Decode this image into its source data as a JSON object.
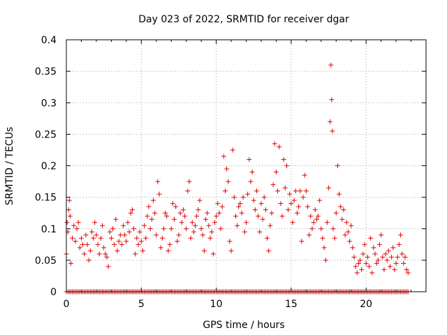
{
  "chart_data": {
    "type": "scatter",
    "title": "Day 023 of 2022, SRMTID for receiver dgar",
    "xlabel": "GPS time / hours",
    "ylabel": "SRMTID / TECUs",
    "xlim": [
      0,
      24
    ],
    "ylim": [
      0,
      0.4
    ],
    "xticks": [
      0,
      5,
      10,
      15,
      20
    ],
    "yticks": [
      0,
      0.05,
      0.1,
      0.15,
      0.2,
      0.25,
      0.3,
      0.35,
      0.4
    ],
    "xtick_labels": [
      "0",
      "5",
      "10",
      "15",
      "20"
    ],
    "ytick_labels": [
      "0",
      "0.05",
      "0.1",
      "0.15",
      "0.2",
      "0.25",
      "0.3",
      "0.35",
      "0.4"
    ],
    "grid": true,
    "marker": "+",
    "color": "#e00000",
    "series": [
      {
        "name": "SRMTID",
        "zero_band": {
          "x_from": 0.0,
          "x_to": 22.8,
          "step": 0.1,
          "y": 0
        },
        "points": [
          [
            0.0,
            0.06
          ],
          [
            0.05,
            0.11
          ],
          [
            0.1,
            0.095
          ],
          [
            0.15,
            0.13
          ],
          [
            0.2,
            0.145
          ],
          [
            0.25,
            0.12
          ],
          [
            0.3,
            0.045
          ],
          [
            0.4,
            0.085
          ],
          [
            0.5,
            0.105
          ],
          [
            0.6,
            0.08
          ],
          [
            0.7,
            0.1
          ],
          [
            0.8,
            0.11
          ],
          [
            0.9,
            0.07
          ],
          [
            1.0,
            0.085
          ],
          [
            1.1,
            0.075
          ],
          [
            1.2,
            0.06
          ],
          [
            1.3,
            0.09
          ],
          [
            1.4,
            0.075
          ],
          [
            1.5,
            0.05
          ],
          [
            1.6,
            0.065
          ],
          [
            1.7,
            0.095
          ],
          [
            1.8,
            0.085
          ],
          [
            1.9,
            0.11
          ],
          [
            2.0,
            0.09
          ],
          [
            2.1,
            0.075
          ],
          [
            2.2,
            0.06
          ],
          [
            2.3,
            0.085
          ],
          [
            2.4,
            0.105
          ],
          [
            2.5,
            0.07
          ],
          [
            2.6,
            0.06
          ],
          [
            2.7,
            0.055
          ],
          [
            2.8,
            0.04
          ],
          [
            2.9,
            0.095
          ],
          [
            3.0,
            0.085
          ],
          [
            3.1,
            0.1
          ],
          [
            3.2,
            0.075
          ],
          [
            3.3,
            0.115
          ],
          [
            3.4,
            0.065
          ],
          [
            3.5,
            0.08
          ],
          [
            3.6,
            0.09
          ],
          [
            3.7,
            0.075
          ],
          [
            3.8,
            0.105
          ],
          [
            3.9,
            0.09
          ],
          [
            4.0,
            0.08
          ],
          [
            4.1,
            0.11
          ],
          [
            4.2,
            0.095
          ],
          [
            4.3,
            0.125
          ],
          [
            4.4,
            0.13
          ],
          [
            4.5,
            0.1
          ],
          [
            4.6,
            0.06
          ],
          [
            4.7,
            0.085
          ],
          [
            4.8,
            0.075
          ],
          [
            4.9,
            0.095
          ],
          [
            5.0,
            0.08
          ],
          [
            5.1,
            0.065
          ],
          [
            5.2,
            0.105
          ],
          [
            5.3,
            0.085
          ],
          [
            5.4,
            0.12
          ],
          [
            5.5,
            0.135
          ],
          [
            5.6,
            0.1
          ],
          [
            5.7,
            0.115
          ],
          [
            5.8,
            0.145
          ],
          [
            5.9,
            0.125
          ],
          [
            6.0,
            0.09
          ],
          [
            6.1,
            0.175
          ],
          [
            6.2,
            0.155
          ],
          [
            6.3,
            0.07
          ],
          [
            6.4,
            0.085
          ],
          [
            6.5,
            0.1
          ],
          [
            6.6,
            0.125
          ],
          [
            6.7,
            0.12
          ],
          [
            6.8,
            0.065
          ],
          [
            6.9,
            0.075
          ],
          [
            7.0,
            0.1
          ],
          [
            7.1,
            0.14
          ],
          [
            7.2,
            0.115
          ],
          [
            7.3,
            0.135
          ],
          [
            7.4,
            0.08
          ],
          [
            7.5,
            0.09
          ],
          [
            7.6,
            0.125
          ],
          [
            7.7,
            0.11
          ],
          [
            7.8,
            0.13
          ],
          [
            7.9,
            0.12
          ],
          [
            8.0,
            0.1
          ],
          [
            8.1,
            0.16
          ],
          [
            8.2,
            0.175
          ],
          [
            8.3,
            0.085
          ],
          [
            8.4,
            0.11
          ],
          [
            8.5,
            0.095
          ],
          [
            8.6,
            0.105
          ],
          [
            8.7,
            0.12
          ],
          [
            8.8,
            0.13
          ],
          [
            8.9,
            0.145
          ],
          [
            9.0,
            0.1
          ],
          [
            9.1,
            0.09
          ],
          [
            9.2,
            0.065
          ],
          [
            9.3,
            0.115
          ],
          [
            9.4,
            0.125
          ],
          [
            9.5,
            0.105
          ],
          [
            9.6,
            0.085
          ],
          [
            9.7,
            0.095
          ],
          [
            9.8,
            0.06
          ],
          [
            9.9,
            0.11
          ],
          [
            10.0,
            0.12
          ],
          [
            10.1,
            0.14
          ],
          [
            10.2,
            0.125
          ],
          [
            10.3,
            0.1
          ],
          [
            10.4,
            0.135
          ],
          [
            10.5,
            0.215
          ],
          [
            10.6,
            0.16
          ],
          [
            10.7,
            0.195
          ],
          [
            10.8,
            0.175
          ],
          [
            10.9,
            0.08
          ],
          [
            11.0,
            0.065
          ],
          [
            11.1,
            0.225
          ],
          [
            11.2,
            0.15
          ],
          [
            11.3,
            0.12
          ],
          [
            11.4,
            0.105
          ],
          [
            11.5,
            0.135
          ],
          [
            11.6,
            0.14
          ],
          [
            11.7,
            0.125
          ],
          [
            11.8,
            0.15
          ],
          [
            11.9,
            0.095
          ],
          [
            12.0,
            0.11
          ],
          [
            12.1,
            0.155
          ],
          [
            12.2,
            0.21
          ],
          [
            12.3,
            0.175
          ],
          [
            12.4,
            0.19
          ],
          [
            12.5,
            0.145
          ],
          [
            12.6,
            0.13
          ],
          [
            12.7,
            0.16
          ],
          [
            12.8,
            0.12
          ],
          [
            12.9,
            0.095
          ],
          [
            13.0,
            0.14
          ],
          [
            13.1,
            0.115
          ],
          [
            13.2,
            0.15
          ],
          [
            13.3,
            0.13
          ],
          [
            13.4,
            0.085
          ],
          [
            13.5,
            0.065
          ],
          [
            13.6,
            0.105
          ],
          [
            13.7,
            0.125
          ],
          [
            13.8,
            0.17
          ],
          [
            13.9,
            0.235
          ],
          [
            14.0,
            0.19
          ],
          [
            14.1,
            0.16
          ],
          [
            14.2,
            0.23
          ],
          [
            14.3,
            0.14
          ],
          [
            14.4,
            0.12
          ],
          [
            14.5,
            0.21
          ],
          [
            14.6,
            0.165
          ],
          [
            14.7,
            0.2
          ],
          [
            14.8,
            0.13
          ],
          [
            14.9,
            0.155
          ],
          [
            15.0,
            0.14
          ],
          [
            15.1,
            0.11
          ],
          [
            15.2,
            0.145
          ],
          [
            15.3,
            0.16
          ],
          [
            15.4,
            0.125
          ],
          [
            15.5,
            0.135
          ],
          [
            15.6,
            0.16
          ],
          [
            15.7,
            0.08
          ],
          [
            15.8,
            0.15
          ],
          [
            15.9,
            0.185
          ],
          [
            16.0,
            0.16
          ],
          [
            16.1,
            0.135
          ],
          [
            16.2,
            0.09
          ],
          [
            16.3,
            0.12
          ],
          [
            16.4,
            0.1
          ],
          [
            16.5,
            0.11
          ],
          [
            16.6,
            0.13
          ],
          [
            16.7,
            0.115
          ],
          [
            16.8,
            0.12
          ],
          [
            16.9,
            0.145
          ],
          [
            17.0,
            0.1
          ],
          [
            17.1,
            0.085
          ],
          [
            17.2,
            0.07
          ],
          [
            17.3,
            0.05
          ],
          [
            17.4,
            0.11
          ],
          [
            17.5,
            0.165
          ],
          [
            17.6,
            0.27
          ],
          [
            17.65,
            0.36
          ],
          [
            17.7,
            0.305
          ],
          [
            17.75,
            0.255
          ],
          [
            17.8,
            0.1
          ],
          [
            17.9,
            0.085
          ],
          [
            18.0,
            0.125
          ],
          [
            18.1,
            0.2
          ],
          [
            18.2,
            0.155
          ],
          [
            18.3,
            0.135
          ],
          [
            18.4,
            0.115
          ],
          [
            18.5,
            0.13
          ],
          [
            18.6,
            0.09
          ],
          [
            18.7,
            0.11
          ],
          [
            18.8,
            0.095
          ],
          [
            18.9,
            0.08
          ],
          [
            19.0,
            0.105
          ],
          [
            19.1,
            0.07
          ],
          [
            19.2,
            0.055
          ],
          [
            19.3,
            0.04
          ],
          [
            19.4,
            0.03
          ],
          [
            19.5,
            0.045
          ],
          [
            19.6,
            0.05
          ],
          [
            19.7,
            0.035
          ],
          [
            19.8,
            0.06
          ],
          [
            19.9,
            0.075
          ],
          [
            20.0,
            0.045
          ],
          [
            20.1,
            0.055
          ],
          [
            20.2,
            0.04
          ],
          [
            20.3,
            0.085
          ],
          [
            20.4,
            0.03
          ],
          [
            20.5,
            0.07
          ],
          [
            20.6,
            0.06
          ],
          [
            20.7,
            0.045
          ],
          [
            20.8,
            0.05
          ],
          [
            20.9,
            0.075
          ],
          [
            21.0,
            0.09
          ],
          [
            21.1,
            0.055
          ],
          [
            21.2,
            0.035
          ],
          [
            21.3,
            0.06
          ],
          [
            21.4,
            0.05
          ],
          [
            21.5,
            0.065
          ],
          [
            21.6,
            0.04
          ],
          [
            21.7,
            0.055
          ],
          [
            21.8,
            0.07
          ],
          [
            21.9,
            0.035
          ],
          [
            22.0,
            0.045
          ],
          [
            22.1,
            0.055
          ],
          [
            22.2,
            0.075
          ],
          [
            22.3,
            0.09
          ],
          [
            22.4,
            0.06
          ],
          [
            22.5,
            0.045
          ],
          [
            22.6,
            0.055
          ],
          [
            22.7,
            0.035
          ],
          [
            22.8,
            0.03
          ]
        ]
      }
    ]
  }
}
